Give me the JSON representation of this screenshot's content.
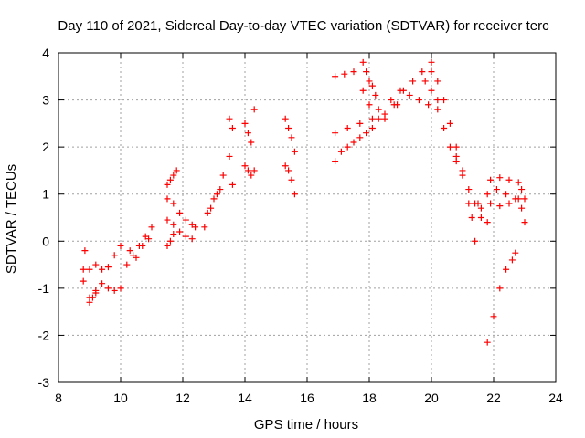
{
  "chart_data": {
    "type": "scatter",
    "title": "Day 110 of 2021, Sidereal Day-to-day VTEC variation (SDTVAR) for receiver terc",
    "xlabel": "GPS time / hours",
    "ylabel": "SDTVAR / TECUs",
    "xlim": [
      8,
      24
    ],
    "ylim": [
      -3,
      4
    ],
    "xticks": [
      8,
      10,
      12,
      14,
      16,
      18,
      20,
      22,
      24
    ],
    "yticks": [
      -3,
      -2,
      -1,
      0,
      1,
      2,
      3,
      4
    ],
    "xtick_labels": [
      "8",
      "10",
      "12",
      "14",
      "16",
      "18",
      "20",
      "22",
      "24"
    ],
    "ytick_labels": [
      "-3",
      "-2",
      "-1",
      "0",
      "1",
      "2",
      "3",
      "4"
    ],
    "grid": true,
    "marker": "+",
    "color": "#ff0000",
    "series": [
      {
        "name": "s1",
        "x": [
          8.8,
          9.0,
          9.2,
          9.4,
          9.6,
          9.8,
          10.0
        ],
        "y": [
          -0.6,
          -0.6,
          -0.5,
          -0.6,
          -0.55,
          -0.3,
          -0.1
        ]
      },
      {
        "name": "s2",
        "x": [
          8.8,
          9.0,
          9.2,
          9.4,
          9.6,
          9.8,
          10.0
        ],
        "y": [
          -0.85,
          -1.2,
          -1.05,
          -0.9,
          -1.0,
          -1.05,
          -1.0
        ]
      },
      {
        "name": "s3",
        "x": [
          8.85,
          9.0,
          9.1,
          9.2
        ],
        "y": [
          -0.2,
          -1.3,
          -1.2,
          -1.1
        ]
      },
      {
        "name": "s4",
        "x": [
          10.2,
          10.4,
          10.6,
          10.8,
          11.0
        ],
        "y": [
          -0.5,
          -0.3,
          -0.1,
          0.1,
          0.3
        ]
      },
      {
        "name": "s5",
        "x": [
          10.3,
          10.5,
          10.7,
          10.9
        ],
        "y": [
          -0.2,
          -0.35,
          -0.1,
          0.05
        ]
      },
      {
        "name": "s6",
        "x": [
          11.5,
          11.6,
          11.7,
          11.8
        ],
        "y": [
          1.2,
          1.3,
          1.4,
          1.5
        ]
      },
      {
        "name": "s7",
        "x": [
          11.5,
          11.7,
          11.9,
          12.1,
          12.3,
          12.4
        ],
        "y": [
          0.9,
          0.8,
          0.6,
          0.45,
          0.35,
          0.3
        ]
      },
      {
        "name": "s8",
        "x": [
          11.5,
          11.7,
          11.9,
          12.1,
          12.3
        ],
        "y": [
          0.45,
          0.35,
          0.2,
          0.1,
          0.05
        ]
      },
      {
        "name": "s9",
        "x": [
          11.5,
          11.6,
          11.7
        ],
        "y": [
          -0.1,
          0.0,
          0.15
        ]
      },
      {
        "name": "s10",
        "x": [
          12.7,
          12.9,
          13.1,
          13.3
        ],
        "y": [
          0.3,
          0.7,
          1.0,
          1.4
        ]
      },
      {
        "name": "s11",
        "x": [
          12.8,
          13.0,
          13.2
        ],
        "y": [
          0.6,
          0.9,
          1.1
        ]
      },
      {
        "name": "s12",
        "x": [
          13.5,
          13.6,
          13.5,
          13.6
        ],
        "y": [
          2.6,
          2.4,
          1.8,
          1.2
        ]
      },
      {
        "name": "s13",
        "x": [
          14.0,
          14.1,
          14.2,
          14.3
        ],
        "y": [
          2.5,
          2.3,
          2.1,
          2.8
        ]
      },
      {
        "name": "s14",
        "x": [
          14.0,
          14.1,
          14.2,
          14.3
        ],
        "y": [
          1.6,
          1.5,
          1.4,
          1.5
        ]
      },
      {
        "name": "s15",
        "x": [
          15.3,
          15.4,
          15.5,
          15.6
        ],
        "y": [
          2.6,
          2.4,
          2.2,
          1.9
        ]
      },
      {
        "name": "s16",
        "x": [
          15.3,
          15.4,
          15.5,
          15.6
        ],
        "y": [
          1.6,
          1.5,
          1.3,
          1.0
        ]
      },
      {
        "name": "s17",
        "x": [
          16.9,
          17.1,
          17.3,
          17.5,
          17.7,
          17.9,
          18.1,
          18.3
        ],
        "y": [
          1.7,
          1.9,
          2.0,
          2.1,
          2.2,
          2.3,
          2.4,
          2.6
        ]
      },
      {
        "name": "s18",
        "x": [
          16.9,
          17.2,
          17.5,
          17.8,
          18.0
        ],
        "y": [
          3.5,
          3.55,
          3.6,
          3.2,
          2.9
        ]
      },
      {
        "name": "s19",
        "x": [
          16.9,
          17.3,
          17.7,
          18.1,
          18.5,
          18.9
        ],
        "y": [
          2.3,
          2.4,
          2.5,
          2.6,
          2.7,
          2.9
        ]
      },
      {
        "name": "s20",
        "x": [
          17.8,
          17.9,
          18.0,
          18.1,
          18.2,
          18.3
        ],
        "y": [
          3.8,
          3.6,
          3.4,
          3.3,
          3.1,
          2.8
        ]
      },
      {
        "name": "s21",
        "x": [
          18.5,
          18.8,
          19.1,
          19.4,
          19.7,
          20.0
        ],
        "y": [
          2.6,
          2.9,
          3.2,
          3.4,
          3.6,
          3.8
        ]
      },
      {
        "name": "s22",
        "x": [
          18.7,
          19.0,
          19.3,
          19.6,
          19.9,
          20.2
        ],
        "y": [
          3.0,
          3.2,
          3.1,
          3.0,
          2.9,
          3.0
        ]
      },
      {
        "name": "s23",
        "x": [
          19.8,
          20.0,
          20.2,
          20.4,
          20.6,
          20.8,
          21.0
        ],
        "y": [
          3.4,
          3.2,
          2.8,
          2.4,
          2.0,
          1.7,
          1.4
        ]
      },
      {
        "name": "s24",
        "x": [
          20.0,
          20.2,
          20.4,
          20.6,
          20.8,
          21.0,
          21.2,
          21.4
        ],
        "y": [
          3.6,
          3.4,
          3.0,
          2.5,
          2.0,
          1.5,
          0.8,
          0.0
        ]
      },
      {
        "name": "s25",
        "x": [
          20.8,
          21.0,
          21.2,
          21.4,
          21.6,
          21.8
        ],
        "y": [
          1.8,
          1.4,
          1.1,
          0.8,
          0.5,
          0.4
        ]
      },
      {
        "name": "s26",
        "x": [
          21.3,
          21.6,
          21.9,
          22.2,
          22.5,
          22.8
        ],
        "y": [
          0.5,
          0.7,
          0.8,
          0.75,
          0.8,
          0.9
        ]
      },
      {
        "name": "s27",
        "x": [
          21.5,
          21.8,
          22.1,
          22.4,
          22.7
        ],
        "y": [
          0.8,
          1.0,
          1.1,
          1.0,
          0.9
        ]
      },
      {
        "name": "s28",
        "x": [
          21.9,
          22.2,
          22.5,
          22.8
        ],
        "y": [
          1.3,
          1.35,
          1.3,
          1.25
        ]
      },
      {
        "name": "s29",
        "x": [
          22.9,
          23.0
        ],
        "y": [
          1.1,
          0.9
        ]
      },
      {
        "name": "s30",
        "x": [
          22.9,
          23.0
        ],
        "y": [
          0.7,
          0.4
        ]
      },
      {
        "name": "s31",
        "x": [
          21.8,
          22.0,
          22.2,
          22.4,
          22.6,
          22.7
        ],
        "y": [
          -2.15,
          -1.6,
          -1.0,
          -0.6,
          -0.4,
          -0.25
        ]
      }
    ]
  }
}
